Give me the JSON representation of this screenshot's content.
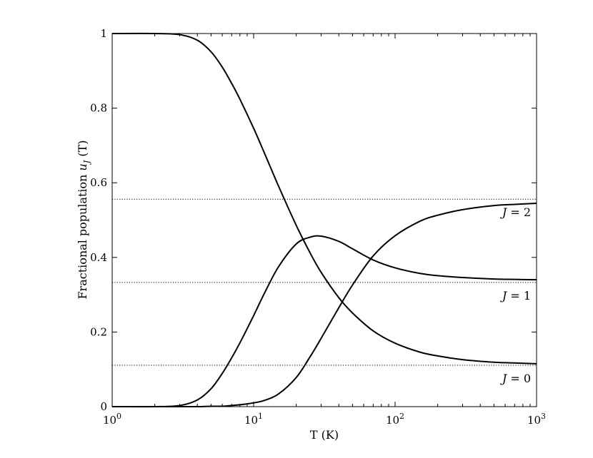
{
  "chart_data": {
    "type": "line",
    "xlabel": "T (K)",
    "ylabel_prefix": "Fractional population ",
    "ylabel_symbol": "u",
    "ylabel_subscript": "J",
    "ylabel_suffix": " (T)",
    "x_scale": "log",
    "xlim": [
      1,
      1000
    ],
    "ylim": [
      0,
      1
    ],
    "grid": false,
    "x_ticks": [
      {
        "value": 1,
        "base": "10",
        "exp": "0"
      },
      {
        "value": 10,
        "base": "10",
        "exp": "1"
      },
      {
        "value": 100,
        "base": "10",
        "exp": "2"
      },
      {
        "value": 1000,
        "base": "10",
        "exp": "3"
      }
    ],
    "y_ticks": [
      {
        "value": 0,
        "label": "0"
      },
      {
        "value": 0.2,
        "label": "0.2"
      },
      {
        "value": 0.4,
        "label": "0.4"
      },
      {
        "value": 0.6,
        "label": "0.6"
      },
      {
        "value": 0.8,
        "label": "0.8"
      },
      {
        "value": 1,
        "label": "1"
      }
    ],
    "series": [
      {
        "label_var": "J",
        "label_rest": " = 0",
        "x": [
          1,
          2,
          3,
          4,
          5,
          6,
          7,
          8,
          10,
          12,
          15,
          20,
          25,
          30,
          40,
          50,
          70,
          100,
          150,
          200,
          300,
          500,
          700,
          1000
        ],
        "y": [
          1,
          1,
          0.997,
          0.982,
          0.951,
          0.91,
          0.866,
          0.824,
          0.746,
          0.677,
          0.591,
          0.486,
          0.413,
          0.36,
          0.292,
          0.251,
          0.203,
          0.17,
          0.146,
          0.136,
          0.126,
          0.119,
          0.117,
          0.115
        ]
      },
      {
        "label_var": "J",
        "label_rest": " = 1",
        "x": [
          1,
          2,
          3,
          4,
          5,
          6,
          7,
          8,
          10,
          12,
          15,
          20,
          25,
          30,
          40,
          50,
          70,
          100,
          150,
          200,
          300,
          500,
          700,
          1000
        ],
        "y": [
          0,
          0,
          0.003,
          0.018,
          0.048,
          0.089,
          0.131,
          0.171,
          0.244,
          0.306,
          0.375,
          0.436,
          0.454,
          0.457,
          0.443,
          0.423,
          0.393,
          0.372,
          0.357,
          0.351,
          0.346,
          0.342,
          0.341,
          0.34
        ]
      },
      {
        "label_var": "J",
        "label_rest": " = 2",
        "x": [
          1,
          2,
          3,
          4,
          5,
          6,
          7,
          8,
          10,
          12,
          15,
          20,
          25,
          30,
          40,
          50,
          70,
          100,
          150,
          200,
          300,
          500,
          700,
          1000
        ],
        "y": [
          0,
          0,
          0,
          0,
          0.001,
          0.001,
          0.003,
          0.005,
          0.01,
          0.017,
          0.034,
          0.078,
          0.133,
          0.183,
          0.265,
          0.326,
          0.404,
          0.458,
          0.497,
          0.513,
          0.528,
          0.539,
          0.542,
          0.545
        ]
      }
    ],
    "reference_lines": [
      0.111,
      0.333,
      0.556
    ]
  }
}
